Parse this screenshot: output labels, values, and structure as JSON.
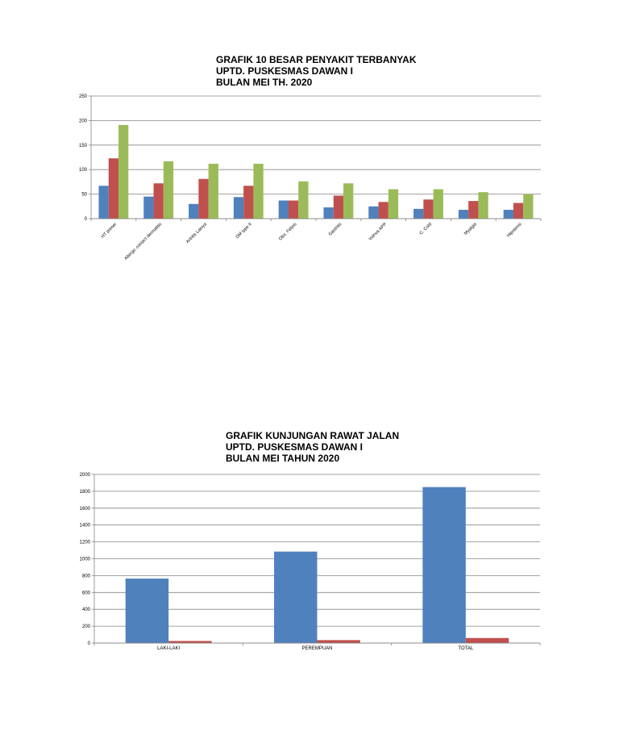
{
  "chart_data": [
    {
      "type": "bar",
      "title_lines": [
        "GRAFIK 10 BESAR PENYAKIT TERBANYAK",
        "UPTD. PUSKESMAS DAWAN I",
        "BULAN MEI TH. 2020"
      ],
      "ylim": [
        0,
        250
      ],
      "yticks": [
        0,
        50,
        100,
        150,
        200,
        250
      ],
      "grid": true,
      "categories": [
        "HT primer",
        "Allergic contact dermatitis",
        "Artritis Lainya",
        "DM type II",
        "Obs. Febris",
        "Gastritis",
        "Vulnus APP",
        "C. Cold",
        "Myalgia",
        "Hipotensi"
      ],
      "series": [
        {
          "color": "#4f81bd",
          "values": [
            67,
            45,
            30,
            44,
            37,
            23,
            25,
            20,
            18,
            18
          ]
        },
        {
          "color": "#c0504d",
          "values": [
            123,
            72,
            81,
            67,
            37,
            47,
            34,
            39,
            36,
            32
          ]
        },
        {
          "color": "#9bbb59",
          "values": [
            191,
            117,
            112,
            112,
            76,
            72,
            60,
            60,
            54,
            50
          ]
        }
      ]
    },
    {
      "type": "bar",
      "title_lines": [
        "GRAFIK KUNJUNGAN RAWAT JALAN",
        "UPTD. PUSKESMAS DAWAN I",
        "BULAN MEI TAHUN 2020"
      ],
      "ylim": [
        0,
        2000
      ],
      "yticks": [
        0,
        200,
        400,
        600,
        800,
        1000,
        1200,
        1400,
        1600,
        1800,
        2000
      ],
      "grid": true,
      "categories": [
        "LAKI-LAKI",
        "PEREMPUAN",
        "TOTAL"
      ],
      "series": [
        {
          "color": "#4f81bd",
          "values": [
            765,
            1085,
            1850
          ]
        },
        {
          "color": "#c0504d",
          "values": [
            25,
            35,
            60
          ]
        }
      ]
    }
  ]
}
